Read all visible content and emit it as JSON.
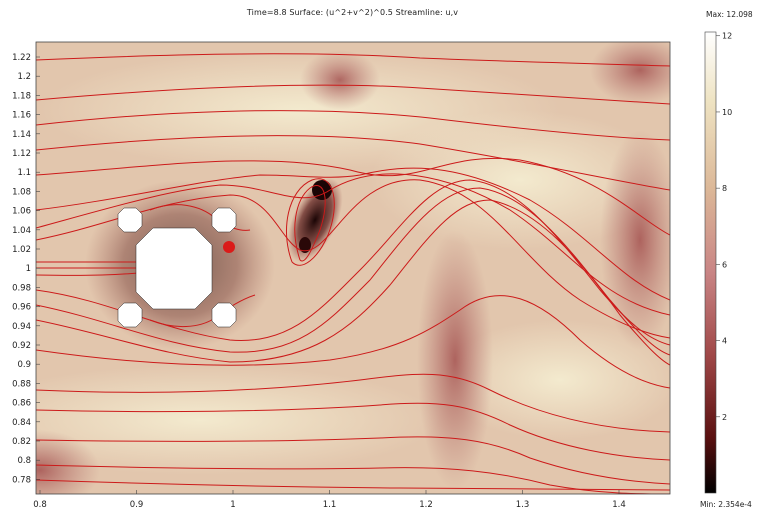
{
  "title": "Time=8.8   Surface: (u^2+v^2)^0.5   Streamline: u,v",
  "colorbar": {
    "max_label": "Max: 12.098",
    "min_label": "Min: 2.354e-4",
    "ticks": [
      "12",
      "10",
      "8",
      "6",
      "4",
      "2"
    ],
    "colors": [
      "#000000",
      "#5a1010",
      "#a04848",
      "#c98585",
      "#dcb898",
      "#eee3c2",
      "#ffffff"
    ]
  },
  "axes": {
    "x_ticks": [
      "0.8",
      "0.9",
      "1",
      "1.1",
      "1.2",
      "1.3",
      "1.4"
    ],
    "y_ticks": [
      "1.22",
      "1.2",
      "1.18",
      "1.16",
      "1.14",
      "1.12",
      "1.1",
      "1.08",
      "1.06",
      "1.04",
      "1.02",
      "1",
      "0.98",
      "0.96",
      "0.94",
      "0.92",
      "0.9",
      "0.88",
      "0.86",
      "0.84",
      "0.82",
      "0.8",
      "0.78"
    ]
  },
  "colors": {
    "streamline": "#cc1a1a",
    "background": "#e6cdb4",
    "obstacle": "#ffffff"
  }
}
